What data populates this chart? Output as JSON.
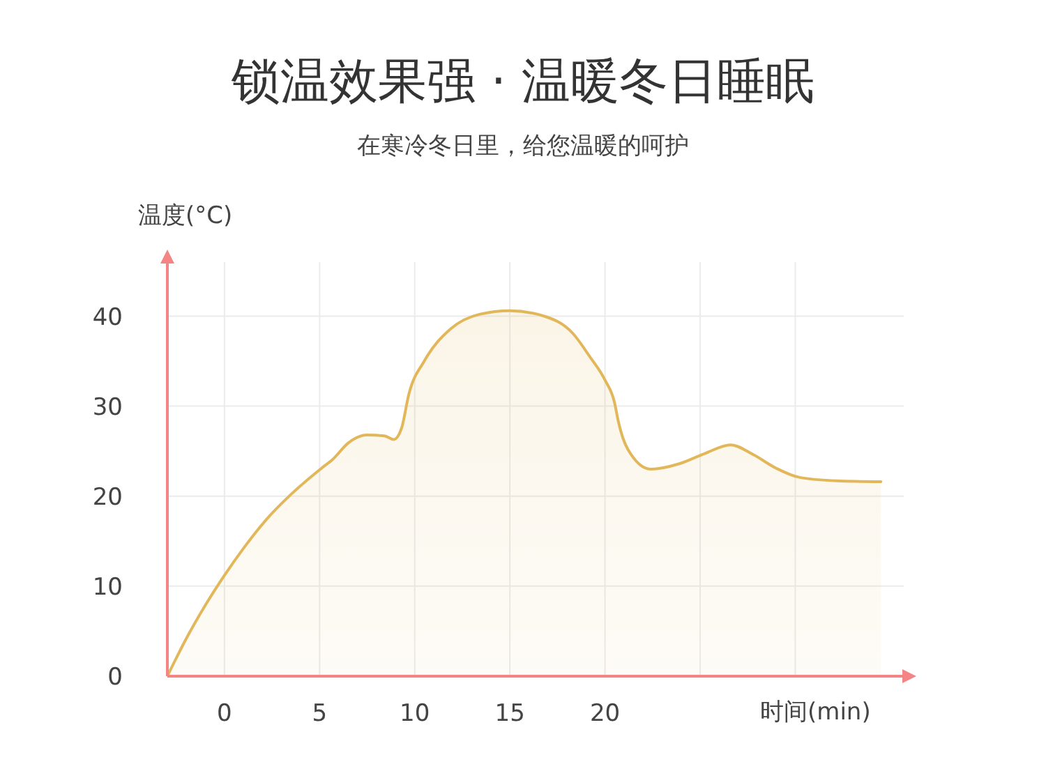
{
  "chart_data": {
    "type": "area",
    "title": "锁温效果强 · 温暖冬日睡眠",
    "subtitle": "在寒冷冬日里，给您温暖的呵护",
    "xlabel": "时间(min)",
    "ylabel": "温度(°C)",
    "x": [
      -3,
      -2,
      -1,
      0,
      1,
      2.2,
      3.5,
      5.1,
      5.7,
      6.5,
      7.5,
      8.4,
      8.9,
      9.3,
      9.7,
      10.5,
      11.9,
      13.4,
      15,
      16.8,
      18.3,
      19.2,
      20,
      20.5,
      20.7,
      21.2,
      22.4,
      23.9,
      25.2,
      26.6,
      27.8,
      29,
      30.2,
      32.2,
      34.5
    ],
    "series": [
      {
        "color": "#e2b75a",
        "values": [
          0,
          4.2,
          7.9,
          11.2,
          14.2,
          17.4,
          20.2,
          23.1,
          24.1,
          25.9,
          26.8,
          26.7,
          26.3,
          27.5,
          31.4,
          35,
          38.6,
          40.2,
          40.6,
          40,
          38.1,
          35.5,
          32.9,
          30.4,
          28.3,
          25.2,
          23,
          23.6,
          24.7,
          25.7,
          24.6,
          23.1,
          22.1,
          21.7,
          21.6
        ]
      }
    ],
    "xlim": [
      -3,
      35.7
    ],
    "ylim": [
      0,
      46
    ],
    "xticks": [
      0,
      5,
      10,
      15,
      20,
      {
        "value": 25,
        "label": null
      },
      {
        "value": 30,
        "label": null
      }
    ],
    "yticks": [
      0,
      10,
      20,
      30,
      40
    ],
    "grid": true
  }
}
